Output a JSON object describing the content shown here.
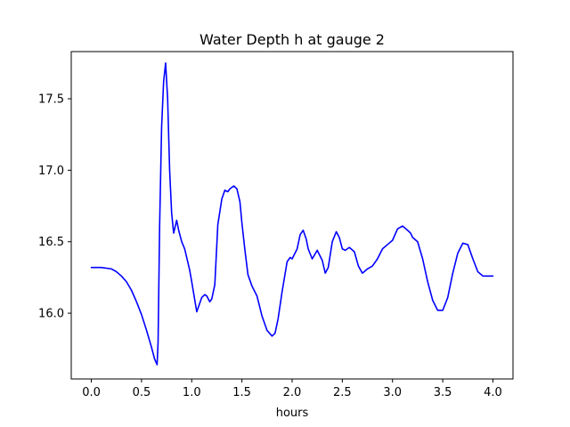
{
  "chart_data": {
    "type": "line",
    "title": "Water Depth h at gauge 2",
    "xlabel": "hours",
    "ylabel": "",
    "xlim": [
      -0.2,
      4.2
    ],
    "ylim": [
      15.54,
      17.83
    ],
    "xticks": [
      0.0,
      0.5,
      1.0,
      1.5,
      2.0,
      2.5,
      3.0,
      3.5,
      4.0
    ],
    "xtick_labels": [
      "0.0",
      "0.5",
      "1.0",
      "1.5",
      "2.0",
      "2.5",
      "3.0",
      "3.5",
      "4.0"
    ],
    "yticks": [
      16.0,
      16.5,
      17.0,
      17.5
    ],
    "ytick_labels": [
      "16.0",
      "16.5",
      "17.0",
      "17.5"
    ],
    "grid": false,
    "line_color": "#0000ff",
    "series": [
      {
        "name": "",
        "x": [
          0.0,
          0.1,
          0.2,
          0.25,
          0.3,
          0.35,
          0.4,
          0.45,
          0.5,
          0.55,
          0.6,
          0.63,
          0.655,
          0.665,
          0.68,
          0.7,
          0.72,
          0.74,
          0.76,
          0.78,
          0.8,
          0.82,
          0.85,
          0.87,
          0.9,
          0.93,
          0.96,
          0.98,
          1.0,
          1.05,
          1.1,
          1.13,
          1.15,
          1.18,
          1.2,
          1.23,
          1.26,
          1.3,
          1.33,
          1.36,
          1.38,
          1.4,
          1.42,
          1.45,
          1.48,
          1.5,
          1.53,
          1.56,
          1.6,
          1.65,
          1.7,
          1.75,
          1.8,
          1.83,
          1.86,
          1.9,
          1.95,
          1.98,
          2.0,
          2.05,
          2.08,
          2.11,
          2.14,
          2.16,
          2.2,
          2.25,
          2.3,
          2.33,
          2.36,
          2.4,
          2.44,
          2.47,
          2.5,
          2.53,
          2.57,
          2.62,
          2.66,
          2.7,
          2.75,
          2.8,
          2.85,
          2.9,
          2.95,
          3.0,
          3.05,
          3.1,
          3.15,
          3.18,
          3.2,
          3.25,
          3.3,
          3.35,
          3.4,
          3.45,
          3.5,
          3.55,
          3.6,
          3.65,
          3.7,
          3.75,
          3.8,
          3.85,
          3.9,
          3.95,
          4.0
        ],
        "values": [
          16.32,
          16.32,
          16.31,
          16.29,
          16.26,
          16.22,
          16.16,
          16.08,
          15.99,
          15.88,
          15.76,
          15.68,
          15.64,
          15.8,
          16.6,
          17.3,
          17.62,
          17.75,
          17.5,
          17.0,
          16.7,
          16.56,
          16.65,
          16.58,
          16.5,
          16.45,
          16.36,
          16.3,
          16.22,
          16.01,
          16.11,
          16.13,
          16.12,
          16.08,
          16.1,
          16.2,
          16.62,
          16.8,
          16.86,
          16.85,
          16.87,
          16.88,
          16.89,
          16.87,
          16.78,
          16.63,
          16.44,
          16.27,
          16.19,
          16.12,
          15.98,
          15.88,
          15.84,
          15.86,
          15.96,
          16.15,
          16.36,
          16.39,
          16.38,
          16.45,
          16.55,
          16.58,
          16.52,
          16.45,
          16.38,
          16.44,
          16.37,
          16.28,
          16.32,
          16.5,
          16.57,
          16.53,
          16.45,
          16.44,
          16.46,
          16.43,
          16.33,
          16.28,
          16.31,
          16.33,
          16.38,
          16.45,
          16.48,
          16.51,
          16.59,
          16.61,
          16.58,
          16.56,
          16.53,
          16.5,
          16.38,
          16.22,
          16.09,
          16.02,
          16.02,
          16.11,
          16.28,
          16.42,
          16.49,
          16.48,
          16.38,
          16.29,
          16.26,
          16.26,
          16.26
        ]
      }
    ]
  }
}
